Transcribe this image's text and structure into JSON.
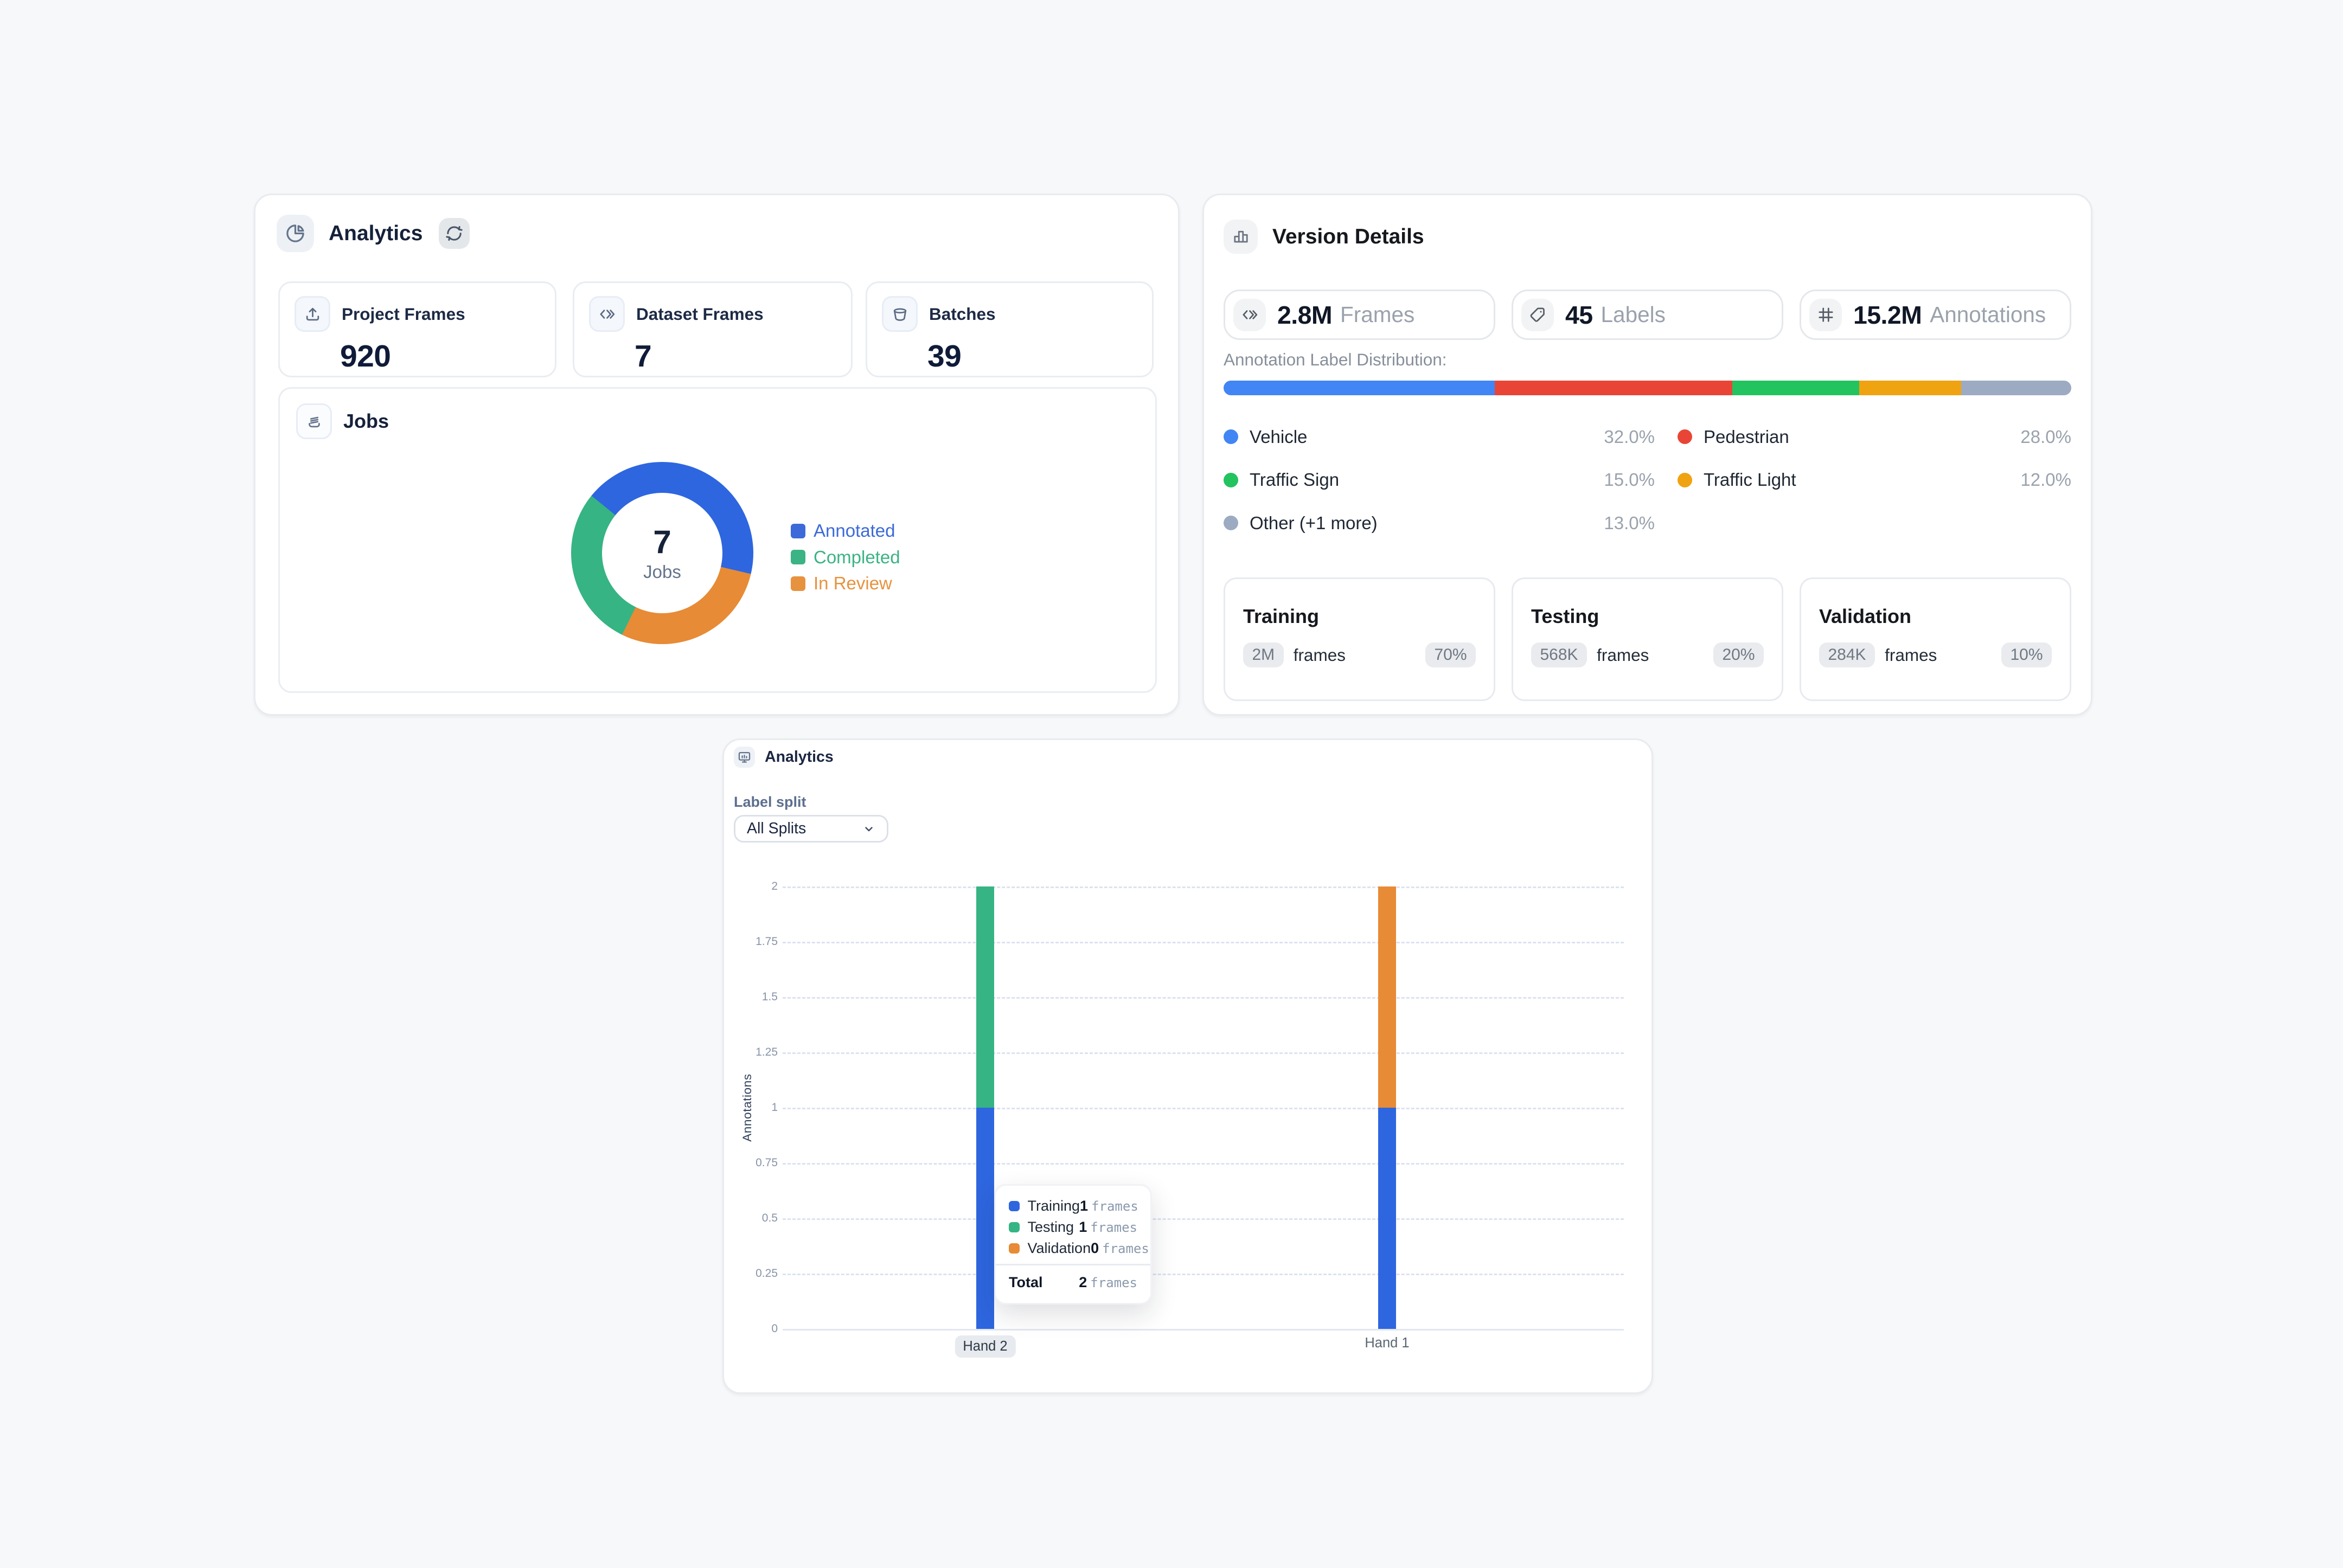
{
  "page": {
    "background": "#f7f8f9"
  },
  "analytics_card": {
    "title": "Analytics",
    "stats": [
      {
        "icon": "upload-icon",
        "label": "Project Frames",
        "value": "920"
      },
      {
        "icon": "chevrons-icon",
        "label": "Dataset Frames",
        "value": "7"
      },
      {
        "icon": "bucket-icon",
        "label": "Batches",
        "value": "39"
      }
    ],
    "jobs": {
      "title": "Jobs",
      "center_value": "7",
      "center_label": "Jobs",
      "legend": [
        {
          "label": "Annotated",
          "color": "#3c6ad9"
        },
        {
          "label": "Completed",
          "color": "#3bb384"
        },
        {
          "label": "In Review",
          "color": "#e7923f"
        }
      ],
      "chart_data": {
        "type": "pie",
        "labels": [
          "Annotated",
          "Completed",
          "In Review"
        ],
        "values": [
          3,
          2,
          2
        ],
        "total_jobs": 7,
        "colors": [
          "#2e66df",
          "#36b483",
          "#e78b36"
        ],
        "start_angle_deg": 309,
        "clockwise_order": [
          "Annotated",
          "In Review",
          "Completed"
        ],
        "title": "Jobs"
      }
    }
  },
  "version_card": {
    "title": "Version Details",
    "stats": [
      {
        "icon": "chevrons-icon",
        "value": "2.8M",
        "label": "Frames"
      },
      {
        "icon": "tag-icon",
        "value": "45",
        "label": "Labels"
      },
      {
        "icon": "frame-icon",
        "value": "15.2M",
        "label": "Annotations"
      }
    ],
    "distribution": {
      "title": "Annotation Label Distribution:",
      "segments": [
        {
          "label": "Vehicle",
          "pct": "32.0%",
          "color": "#4285f4"
        },
        {
          "label": "Pedestrian",
          "pct": "28.0%",
          "color": "#e94537"
        },
        {
          "label": "Traffic Sign",
          "pct": "15.0%",
          "color": "#23c35f"
        },
        {
          "label": "Traffic Light",
          "pct": "12.0%",
          "color": "#f0a310"
        },
        {
          "label": "Other (+1 more)",
          "pct": "13.0%",
          "color": "#9cabc2"
        }
      ]
    },
    "splits": [
      {
        "title": "Training",
        "count": "2M",
        "unit": "frames",
        "pct": "70%"
      },
      {
        "title": "Testing",
        "count": "568K",
        "unit": "frames",
        "pct": "20%"
      },
      {
        "title": "Validation",
        "count": "284K",
        "unit": "frames",
        "pct": "10%"
      }
    ]
  },
  "chart_card": {
    "title": "Analytics",
    "filter_label": "Label split",
    "filter_value": "All Splits",
    "chart_data": {
      "type": "bar",
      "stacked": true,
      "categories": [
        "Hand 2",
        "Hand 1"
      ],
      "highlighted_category": "Hand 2",
      "series": [
        {
          "name": "Training",
          "color": "#2e66df",
          "values": [
            1,
            1
          ]
        },
        {
          "name": "Testing",
          "color": "#36b483",
          "values": [
            1,
            0
          ]
        },
        {
          "name": "Validation",
          "color": "#e78b36",
          "values": [
            0,
            1
          ]
        }
      ],
      "ylabel": "Annotations",
      "ylim": [
        0,
        2
      ],
      "yticks": [
        "0",
        "0.25",
        "0.5",
        "0.75",
        "1",
        "1.25",
        "1.5",
        "1.75",
        "2"
      ],
      "grid": true
    },
    "tooltip": {
      "rows": [
        {
          "label": "Training",
          "value": "1",
          "unit": "frames",
          "color": "#2e66df"
        },
        {
          "label": "Testing",
          "value": "1",
          "unit": "frames",
          "color": "#36b483"
        },
        {
          "label": "Validation",
          "value": "0",
          "unit": "frames",
          "color": "#e78b36"
        }
      ],
      "total_label": "Total",
      "total_value": "2",
      "total_unit": "frames"
    }
  }
}
